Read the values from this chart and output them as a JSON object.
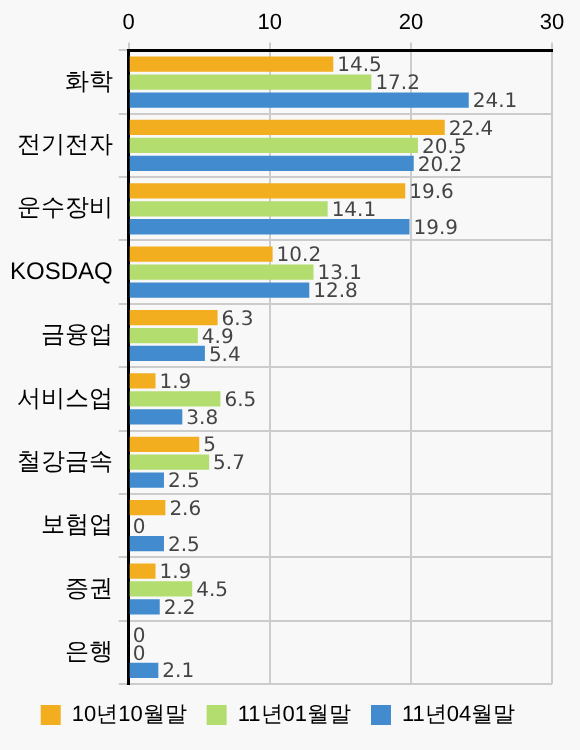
{
  "chart_data": {
    "type": "bar",
    "orientation": "horizontal",
    "categories": [
      "화학",
      "전기전자",
      "운수장비",
      "KOSDAQ",
      "금융업",
      "서비스업",
      "철강금속",
      "보험업",
      "증권",
      "은행"
    ],
    "series": [
      {
        "name": "10년10월말",
        "color": "#f2ae1f",
        "values": [
          14.5,
          22.4,
          19.6,
          10.2,
          6.3,
          1.9,
          5,
          2.6,
          1.9,
          0
        ]
      },
      {
        "name": "11년01월말",
        "color": "#b3dd6f",
        "values": [
          17.2,
          20.5,
          14.1,
          13.1,
          4.9,
          6.5,
          5.7,
          0,
          4.5,
          0
        ]
      },
      {
        "name": "11년04월말",
        "color": "#428bcf",
        "values": [
          24.1,
          20.2,
          19.9,
          12.8,
          5.4,
          3.8,
          2.5,
          2.5,
          2.2,
          2.1
        ]
      }
    ],
    "xlim": [
      0,
      30
    ],
    "xticks": [
      0,
      10,
      20,
      30
    ],
    "grid": true,
    "legend": "bottom",
    "data_labels": true
  }
}
